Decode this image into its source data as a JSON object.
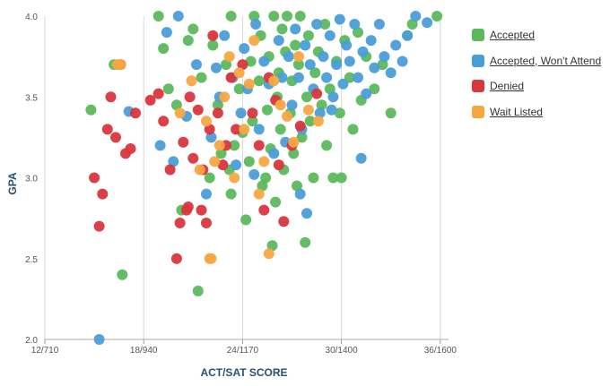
{
  "chart_data": {
    "type": "scatter",
    "xlabel": "ACT/SAT SCORE",
    "ylabel": "GPA",
    "x_ticks": [
      {
        "value": 12,
        "label": "12/710"
      },
      {
        "value": 18,
        "label": "18/940"
      },
      {
        "value": 24,
        "label": "24/1170"
      },
      {
        "value": 30,
        "label": "30/1400"
      },
      {
        "value": 36,
        "label": "36/1600"
      }
    ],
    "y_ticks": [
      {
        "value": 2.0,
        "label": "2.0"
      },
      {
        "value": 2.5,
        "label": "2.5"
      },
      {
        "value": 3.0,
        "label": "3.0"
      },
      {
        "value": 3.5,
        "label": "3.5"
      },
      {
        "value": 4.0,
        "label": "4.0"
      }
    ],
    "xlim": [
      12,
      36.5
    ],
    "ylim": [
      2.0,
      4.0
    ],
    "grid": "vertical",
    "legend_position": "right",
    "series": [
      {
        "name": "Accepted",
        "color": "#5cb85c",
        "points": [
          [
            14.8,
            3.42
          ],
          [
            16.2,
            3.7
          ],
          [
            16.7,
            2.4
          ],
          [
            18.9,
            4.0
          ],
          [
            19.2,
            3.8
          ],
          [
            20.3,
            2.8
          ],
          [
            20.7,
            3.85
          ],
          [
            21.3,
            2.3
          ],
          [
            21.5,
            3.62
          ],
          [
            22.2,
            3.82
          ],
          [
            22.5,
            3.45
          ],
          [
            22.7,
            3.15
          ],
          [
            23.2,
            3.05
          ],
          [
            23.3,
            2.9
          ],
          [
            23.3,
            4.0
          ],
          [
            23.5,
            3.2
          ],
          [
            23.8,
            3.55
          ],
          [
            24.0,
            3.28
          ],
          [
            24.2,
            2.74
          ],
          [
            24.4,
            3.1
          ],
          [
            24.5,
            3.72
          ],
          [
            24.6,
            3.35
          ],
          [
            24.7,
            4.0
          ],
          [
            25.0,
            3.6
          ],
          [
            25.1,
            3.88
          ],
          [
            25.2,
            2.95
          ],
          [
            25.4,
            3.0
          ],
          [
            25.5,
            3.42
          ],
          [
            25.6,
            3.75
          ],
          [
            25.7,
            3.18
          ],
          [
            25.8,
            2.58
          ],
          [
            25.9,
            4.0
          ],
          [
            26.0,
            2.85
          ],
          [
            26.1,
            3.5
          ],
          [
            26.2,
            3.65
          ],
          [
            26.3,
            3.3
          ],
          [
            26.4,
            3.92
          ],
          [
            26.5,
            3.05
          ],
          [
            26.6,
            3.78
          ],
          [
            26.7,
            4.0
          ],
          [
            26.9,
            3.4
          ],
          [
            27.0,
            3.6
          ],
          [
            27.1,
            3.15
          ],
          [
            27.2,
            3.82
          ],
          [
            27.3,
            2.95
          ],
          [
            27.4,
            3.7
          ],
          [
            27.5,
            4.0
          ],
          [
            27.6,
            3.25
          ],
          [
            27.8,
            2.6
          ],
          [
            27.9,
            3.5
          ],
          [
            28.0,
            3.88
          ],
          [
            28.1,
            3.35
          ],
          [
            28.3,
            3.0
          ],
          [
            28.4,
            3.65
          ],
          [
            28.6,
            3.78
          ],
          [
            28.8,
            3.45
          ],
          [
            29.0,
            3.95
          ],
          [
            29.1,
            3.2
          ],
          [
            29.3,
            3.55
          ],
          [
            29.5,
            3.0
          ],
          [
            29.7,
            3.72
          ],
          [
            29.9,
            3.4
          ],
          [
            30.0,
            3.0
          ],
          [
            30.2,
            3.85
          ],
          [
            30.5,
            3.62
          ],
          [
            30.7,
            3.3
          ],
          [
            31.0,
            3.9
          ],
          [
            31.2,
            3.48
          ],
          [
            31.5,
            3.75
          ],
          [
            32.0,
            3.55
          ],
          [
            32.5,
            3.7
          ],
          [
            33.0,
            3.4
          ],
          [
            34.0,
            3.88
          ],
          [
            34.3,
            3.95
          ],
          [
            35.8,
            4.0
          ],
          [
            19.5,
            3.55
          ],
          [
            20.0,
            3.45
          ],
          [
            21.0,
            3.92
          ],
          [
            22.0,
            3.0
          ],
          [
            23.0,
            3.7
          ]
        ]
      },
      {
        "name": "Accepted, Won't Attend",
        "color": "#4a9ed8",
        "points": [
          [
            15.3,
            2.0
          ],
          [
            17.1,
            3.41
          ],
          [
            19.0,
            3.2
          ],
          [
            19.4,
            3.9
          ],
          [
            19.8,
            3.1
          ],
          [
            20.1,
            4.0
          ],
          [
            20.6,
            3.38
          ],
          [
            21.2,
            3.7
          ],
          [
            21.8,
            2.9
          ],
          [
            22.1,
            3.25
          ],
          [
            22.4,
            3.68
          ],
          [
            22.6,
            3.5
          ],
          [
            22.9,
            3.88
          ],
          [
            23.4,
            3.62
          ],
          [
            23.6,
            3.08
          ],
          [
            23.9,
            3.4
          ],
          [
            24.1,
            3.8
          ],
          [
            24.3,
            3.55
          ],
          [
            24.8,
            3.95
          ],
          [
            25.0,
            3.3
          ],
          [
            25.3,
            3.72
          ],
          [
            25.6,
            3.58
          ],
          [
            25.9,
            3.15
          ],
          [
            26.2,
            3.85
          ],
          [
            26.4,
            3.62
          ],
          [
            26.8,
            3.75
          ],
          [
            27.0,
            3.45
          ],
          [
            27.2,
            3.92
          ],
          [
            27.4,
            3.62
          ],
          [
            27.6,
            3.3
          ],
          [
            27.8,
            3.82
          ],
          [
            27.9,
            2.78
          ],
          [
            28.1,
            3.7
          ],
          [
            28.3,
            3.55
          ],
          [
            28.5,
            3.95
          ],
          [
            28.7,
            3.4
          ],
          [
            28.9,
            3.75
          ],
          [
            29.1,
            3.62
          ],
          [
            29.3,
            3.88
          ],
          [
            29.5,
            3.5
          ],
          [
            29.7,
            3.7
          ],
          [
            29.9,
            3.98
          ],
          [
            30.1,
            3.58
          ],
          [
            30.3,
            3.82
          ],
          [
            30.5,
            3.72
          ],
          [
            30.8,
            3.95
          ],
          [
            31.0,
            3.62
          ],
          [
            31.3,
            3.78
          ],
          [
            31.5,
            3.52
          ],
          [
            31.8,
            3.85
          ],
          [
            32.0,
            3.68
          ],
          [
            32.3,
            3.95
          ],
          [
            32.6,
            3.75
          ],
          [
            33.0,
            3.65
          ],
          [
            33.3,
            3.82
          ],
          [
            33.7,
            3.72
          ],
          [
            34.0,
            3.88
          ],
          [
            34.5,
            4.0
          ],
          [
            35.2,
            3.96
          ],
          [
            31.2,
            3.12
          ],
          [
            27.5,
            2.9
          ],
          [
            24.7,
            3.02
          ],
          [
            26.6,
            3.22
          ],
          [
            29.4,
            3.42
          ]
        ]
      },
      {
        "name": "Denied",
        "color": "#d9363e",
        "points": [
          [
            15.0,
            3.0
          ],
          [
            15.3,
            2.7
          ],
          [
            15.5,
            2.9
          ],
          [
            15.8,
            3.3
          ],
          [
            16.0,
            3.5
          ],
          [
            16.3,
            3.25
          ],
          [
            16.6,
            3.7
          ],
          [
            16.9,
            3.15
          ],
          [
            17.2,
            3.18
          ],
          [
            17.5,
            3.4
          ],
          [
            18.4,
            3.48
          ],
          [
            18.9,
            3.52
          ],
          [
            19.2,
            3.35
          ],
          [
            19.6,
            3.05
          ],
          [
            20.0,
            2.5
          ],
          [
            20.2,
            2.72
          ],
          [
            20.4,
            3.22
          ],
          [
            20.6,
            2.8
          ],
          [
            20.8,
            3.5
          ],
          [
            21.0,
            3.12
          ],
          [
            21.3,
            3.42
          ],
          [
            21.6,
            3.05
          ],
          [
            21.8,
            2.72
          ],
          [
            22.0,
            3.3
          ],
          [
            22.2,
            3.88
          ],
          [
            22.5,
            3.4
          ],
          [
            22.8,
            3.08
          ],
          [
            23.0,
            3.2
          ],
          [
            23.3,
            3.62
          ],
          [
            23.6,
            3.3
          ],
          [
            24.0,
            3.7
          ],
          [
            24.6,
            3.4
          ],
          [
            25.0,
            3.2
          ],
          [
            25.3,
            2.8
          ],
          [
            25.6,
            3.62
          ],
          [
            26.0,
            3.48
          ],
          [
            26.2,
            3.08
          ],
          [
            26.5,
            2.73
          ],
          [
            27.0,
            3.2
          ],
          [
            27.5,
            3.32
          ],
          [
            28.5,
            3.52
          ],
          [
            21.5,
            2.8
          ],
          [
            20.7,
            2.82
          ]
        ]
      },
      {
        "name": "Wait Listed",
        "color": "#f5a742",
        "points": [
          [
            16.4,
            3.7
          ],
          [
            20.2,
            3.4
          ],
          [
            20.9,
            3.6
          ],
          [
            21.4,
            3.05
          ],
          [
            21.8,
            3.35
          ],
          [
            22.0,
            2.5
          ],
          [
            22.3,
            3.1
          ],
          [
            22.6,
            3.2
          ],
          [
            22.9,
            3.5
          ],
          [
            23.2,
            3.75
          ],
          [
            23.5,
            3.0
          ],
          [
            23.8,
            3.65
          ],
          [
            24.1,
            3.3
          ],
          [
            24.4,
            3.58
          ],
          [
            24.7,
            3.85
          ],
          [
            25.0,
            2.9
          ],
          [
            25.3,
            3.1
          ],
          [
            25.6,
            2.53
          ],
          [
            25.9,
            3.6
          ],
          [
            26.3,
            3.45
          ],
          [
            26.7,
            3.38
          ],
          [
            27.1,
            3.22
          ],
          [
            27.4,
            3.75
          ],
          [
            28.0,
            3.42
          ],
          [
            28.6,
            3.35
          ],
          [
            16.6,
            3.7
          ],
          [
            22.1,
            2.5
          ]
        ]
      }
    ]
  },
  "legend": [
    {
      "label": "Accepted",
      "color": "#5cb85c"
    },
    {
      "label": "Accepted, Won't Attend",
      "color": "#4a9ed8"
    },
    {
      "label": "Denied",
      "color": "#d9363e"
    },
    {
      "label": "Wait Listed",
      "color": "#f5a742"
    }
  ]
}
